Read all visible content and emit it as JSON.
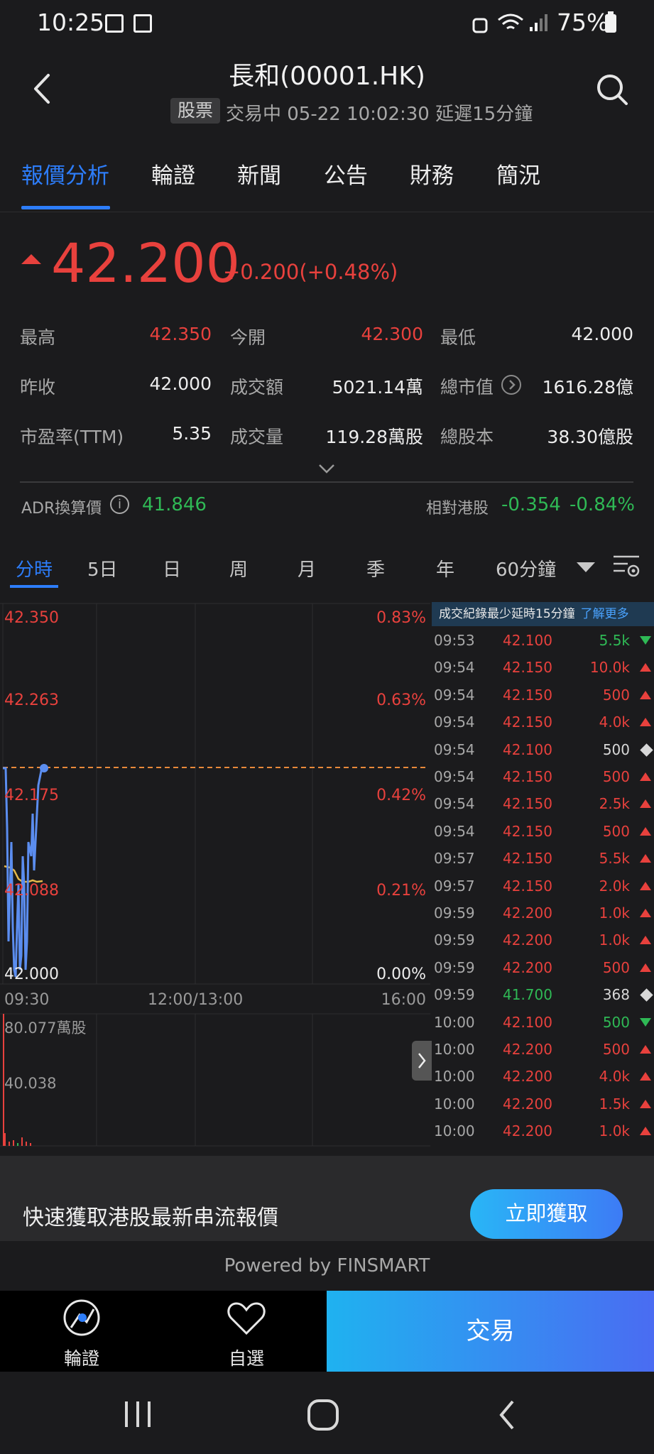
{
  "status_bar": {
    "time": "10:25",
    "battery": "75%"
  },
  "header": {
    "title": "長和(00001.HK)",
    "tag": "股票",
    "status": "交易中 05-22 10:02:30  延遲15分鐘"
  },
  "tabs": [
    "報價分析",
    "輪證",
    "新聞",
    "公告",
    "財務",
    "簡況"
  ],
  "quote": {
    "price": "42.200",
    "change": "+0.200(+0.48%)",
    "stats": [
      {
        "label": "最高",
        "value": "42.350"
      },
      {
        "label": "今開",
        "value": "42.300"
      },
      {
        "label": "最低",
        "value": "42.000"
      },
      {
        "label": "昨收",
        "value": "42.000"
      },
      {
        "label": "成交額",
        "value": "5021.14萬"
      },
      {
        "label": "總市值",
        "value": "1616.28億"
      },
      {
        "label": "市盈率(TTM)",
        "value": "5.35"
      },
      {
        "label": "成交量",
        "value": "119.28萬股"
      },
      {
        "label": "總股本",
        "value": "38.30億股"
      }
    ],
    "adr_label": "ADR換算價",
    "adr_value": "41.846",
    "relative_label": "相對港股",
    "relative_change": "-0.354",
    "relative_pct": "-0.84%"
  },
  "period_tabs": [
    "分時",
    "5日",
    "日",
    "周",
    "月",
    "季",
    "年",
    "60分鐘"
  ],
  "chart": {
    "price_labels": [
      "42.350",
      "42.263",
      "42.175",
      "42.088",
      "42.000"
    ],
    "pct_labels": [
      "0.83%",
      "0.63%",
      "0.42%",
      "0.21%",
      "0.00%"
    ],
    "time_labels": [
      "09:30",
      "12:00/13:00",
      "16:00"
    ],
    "volume_labels": [
      "80.077萬股",
      "40.038"
    ]
  },
  "trades": {
    "header": "成交紀錄最少延時15分鐘",
    "more": "了解更多",
    "rows": [
      {
        "time": "09:53",
        "price": "42.100",
        "vol": "5.5k",
        "dir": "down"
      },
      {
        "time": "09:54",
        "price": "42.150",
        "vol": "10.0k",
        "dir": "up"
      },
      {
        "time": "09:54",
        "price": "42.150",
        "vol": "500",
        "dir": "up"
      },
      {
        "time": "09:54",
        "price": "42.150",
        "vol": "4.0k",
        "dir": "up"
      },
      {
        "time": "09:54",
        "price": "42.100",
        "vol": "500",
        "dir": "neutral"
      },
      {
        "time": "09:54",
        "price": "42.150",
        "vol": "500",
        "dir": "up"
      },
      {
        "time": "09:54",
        "price": "42.150",
        "vol": "2.5k",
        "dir": "up"
      },
      {
        "time": "09:54",
        "price": "42.150",
        "vol": "500",
        "dir": "up"
      },
      {
        "time": "09:57",
        "price": "42.150",
        "vol": "5.5k",
        "dir": "up"
      },
      {
        "time": "09:57",
        "price": "42.150",
        "vol": "2.0k",
        "dir": "up"
      },
      {
        "time": "09:59",
        "price": "42.200",
        "vol": "1.0k",
        "dir": "up"
      },
      {
        "time": "09:59",
        "price": "42.200",
        "vol": "1.0k",
        "dir": "up"
      },
      {
        "time": "09:59",
        "price": "42.200",
        "vol": "500",
        "dir": "up"
      },
      {
        "time": "09:59",
        "price": "41.700",
        "vol": "368",
        "dir": "neutral"
      },
      {
        "time": "10:00",
        "price": "42.100",
        "vol": "500",
        "dir": "down"
      },
      {
        "time": "10:00",
        "price": "42.200",
        "vol": "500",
        "dir": "up"
      },
      {
        "time": "10:00",
        "price": "42.200",
        "vol": "4.0k",
        "dir": "up"
      },
      {
        "time": "10:00",
        "price": "42.200",
        "vol": "1.5k",
        "dir": "up"
      },
      {
        "time": "10:00",
        "price": "42.200",
        "vol": "1.0k",
        "dir": "up"
      }
    ]
  },
  "promo": {
    "text": "快速獲取港股最新串流報價",
    "button": "立即獲取"
  },
  "powered_by": "Powered by FINSMART",
  "bottom_bar": {
    "warrant": "輪證",
    "watchlist": "自選",
    "trade": "交易"
  },
  "colors": {
    "up": "#e8413d",
    "down": "#2fb955",
    "accent": "#2d7dfa"
  }
}
